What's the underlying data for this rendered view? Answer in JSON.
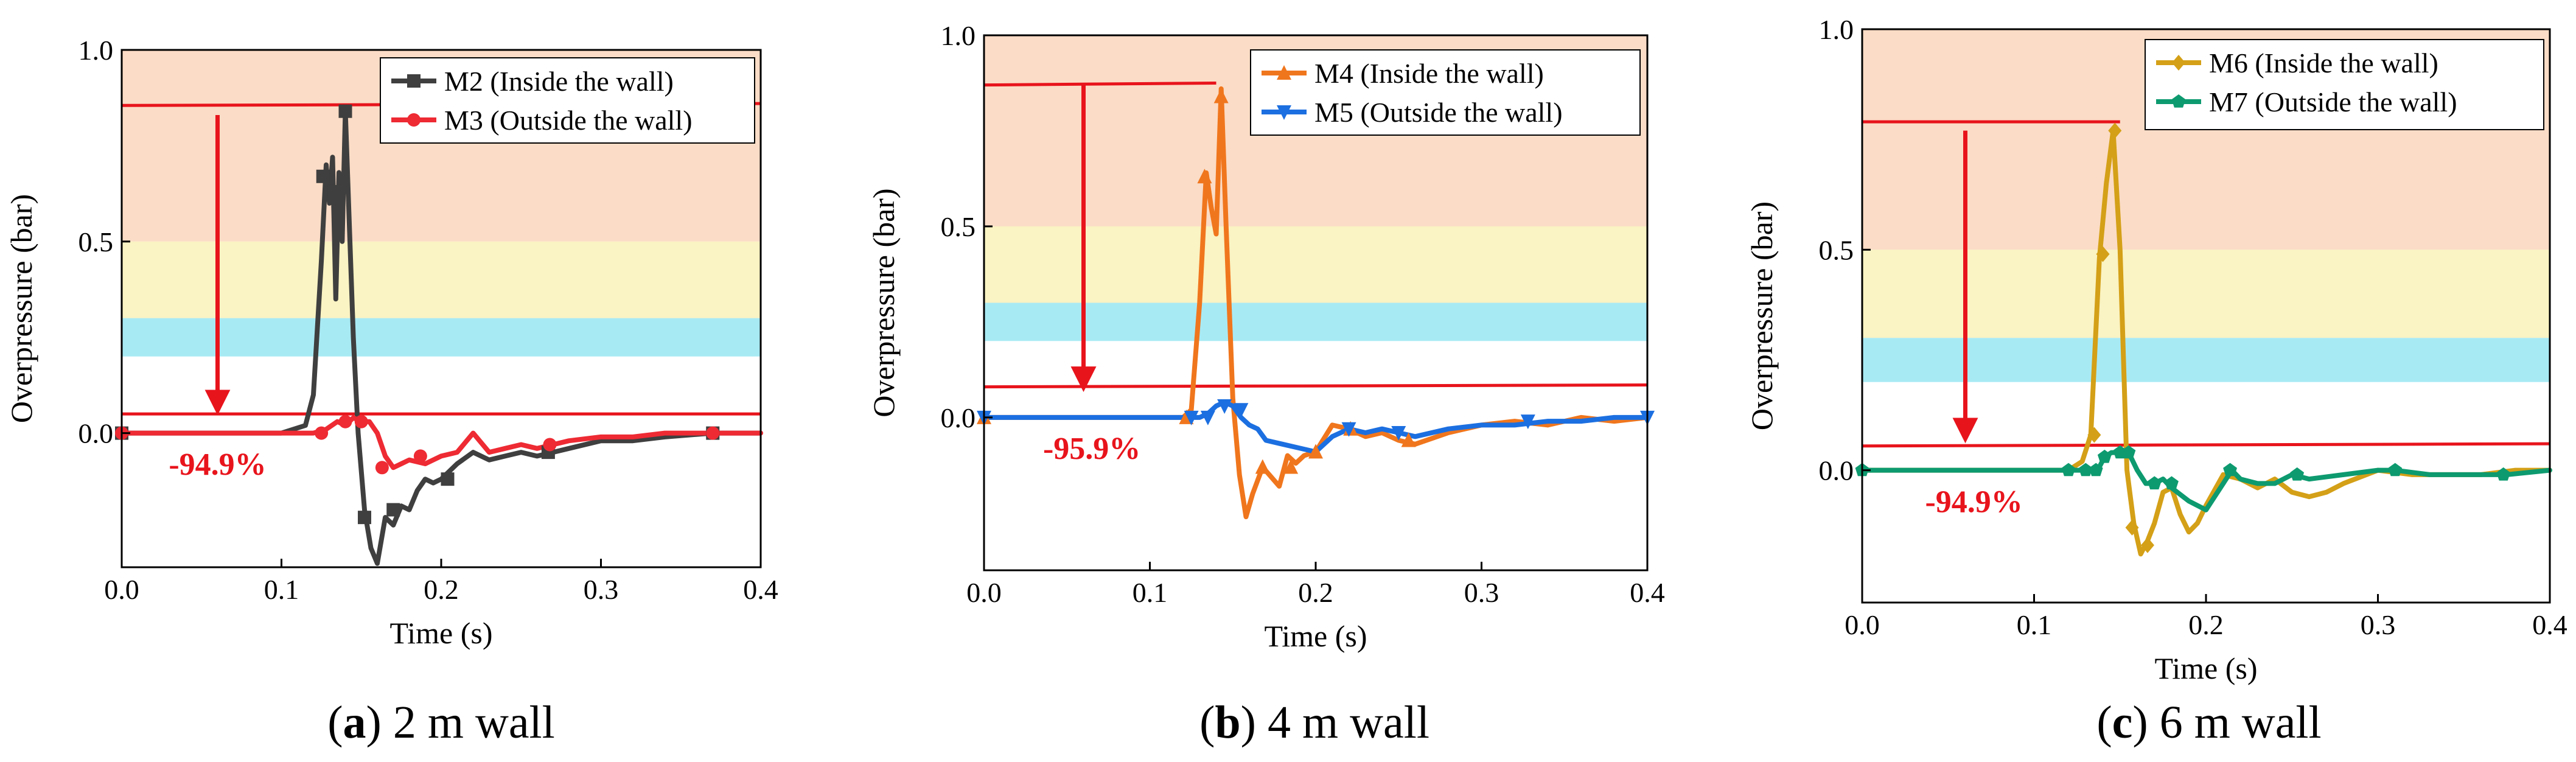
{
  "figure": {
    "colors": {
      "band_high": "#fbdcc6",
      "band_mid": "#faf3c3",
      "band_low": "#a8eaf4",
      "reference_line": "#e8141c",
      "arrow": "#e8141c",
      "annotation": "#e8141c"
    }
  },
  "chart_data": [
    {
      "type": "line",
      "panel_label": "a",
      "caption": "2 m wall",
      "xlabel": "Time (s)",
      "ylabel": "Overpressure (bar)",
      "xlim": [
        0.0,
        0.4
      ],
      "ylim": [
        -0.35,
        1.0
      ],
      "xticks": [
        "0.0",
        "0.1",
        "0.2",
        "0.3",
        "0.4"
      ],
      "yticks": [
        "0.0",
        "0.5",
        "1.0"
      ],
      "xtick_values": [
        0.0,
        0.1,
        0.2,
        0.3,
        0.4
      ],
      "ytick_values": [
        0.0,
        0.5,
        1.0
      ],
      "bands": [
        {
          "from": 0.5,
          "to": 1.0,
          "color": "#fbdcc6"
        },
        {
          "from": 0.3,
          "to": 0.5,
          "color": "#faf3c3"
        },
        {
          "from": 0.2,
          "to": 0.3,
          "color": "#a8eaf4"
        }
      ],
      "reference_lines": [
        {
          "from": [
            0.0,
            0.855
          ],
          "to": [
            0.4,
            0.86
          ]
        },
        {
          "from": [
            0.0,
            0.05
          ],
          "to": [
            0.4,
            0.05
          ]
        }
      ],
      "arrow": {
        "x": 0.06,
        "from": 0.83,
        "to": 0.08
      },
      "annotation": {
        "text": "-94.9%",
        "x": 0.06,
        "y": -0.08
      },
      "legend_position": "top-right",
      "series": [
        {
          "name": "M2 (Inside the wall)",
          "color": "#3f3f3f",
          "marker": "square",
          "x": [
            0.0,
            0.05,
            0.1,
            0.115,
            0.12,
            0.125,
            0.128,
            0.13,
            0.132,
            0.134,
            0.136,
            0.138,
            0.14,
            0.142,
            0.145,
            0.148,
            0.152,
            0.156,
            0.16,
            0.165,
            0.17,
            0.175,
            0.18,
            0.185,
            0.19,
            0.195,
            0.2,
            0.21,
            0.22,
            0.23,
            0.24,
            0.25,
            0.26,
            0.27,
            0.28,
            0.3,
            0.32,
            0.34,
            0.37,
            0.4
          ],
          "y": [
            0.0,
            0.0,
            0.0,
            0.02,
            0.1,
            0.45,
            0.7,
            0.6,
            0.72,
            0.35,
            0.68,
            0.5,
            0.84,
            0.6,
            0.25,
            0.0,
            -0.2,
            -0.3,
            -0.34,
            -0.22,
            -0.24,
            -0.19,
            -0.2,
            -0.15,
            -0.12,
            -0.13,
            -0.12,
            -0.08,
            -0.05,
            -0.07,
            -0.06,
            -0.05,
            -0.06,
            -0.05,
            -0.04,
            -0.02,
            -0.02,
            -0.01,
            0.0,
            0.0
          ],
          "marker_x": [
            0.0,
            0.126,
            0.133,
            0.14,
            0.152,
            0.17,
            0.204,
            0.267,
            0.37
          ],
          "marker_y": [
            0.0,
            0.67,
            0.63,
            0.84,
            -0.22,
            -0.2,
            -0.12,
            -0.05,
            0.0
          ]
        },
        {
          "name": "M3 (Outside the wall)",
          "color": "#ee2a33",
          "marker": "circle",
          "x": [
            0.0,
            0.05,
            0.1,
            0.12,
            0.128,
            0.135,
            0.14,
            0.145,
            0.15,
            0.155,
            0.16,
            0.165,
            0.17,
            0.175,
            0.18,
            0.19,
            0.2,
            0.21,
            0.22,
            0.23,
            0.24,
            0.25,
            0.26,
            0.27,
            0.28,
            0.3,
            0.32,
            0.34,
            0.37,
            0.4
          ],
          "y": [
            0.0,
            0.0,
            0.0,
            0.0,
            0.01,
            0.03,
            0.02,
            0.04,
            0.03,
            0.03,
            0.0,
            -0.06,
            -0.09,
            -0.08,
            -0.07,
            -0.08,
            -0.06,
            -0.05,
            0.0,
            -0.05,
            -0.04,
            -0.03,
            -0.04,
            -0.03,
            -0.02,
            -0.01,
            -0.01,
            0.0,
            0.0,
            0.0
          ],
          "marker_x": [
            0.0,
            0.125,
            0.14,
            0.15,
            0.163,
            0.187,
            0.268,
            0.37
          ],
          "marker_y": [
            0.0,
            0.0,
            0.03,
            0.03,
            -0.09,
            -0.06,
            -0.03,
            0.0
          ]
        }
      ]
    },
    {
      "type": "line",
      "panel_label": "b",
      "caption": "4 m wall",
      "xlabel": "Time (s)",
      "ylabel": "Overpressure (bar)",
      "xlim": [
        0.0,
        0.4
      ],
      "ylim": [
        -0.4,
        1.0
      ],
      "xticks": [
        "0.0",
        "0.1",
        "0.2",
        "0.3",
        "0.4"
      ],
      "yticks": [
        "0.0",
        "0.5",
        "1.0"
      ],
      "xtick_values": [
        0.0,
        0.1,
        0.2,
        0.3,
        0.4
      ],
      "ytick_values": [
        0.0,
        0.5,
        1.0
      ],
      "bands": [
        {
          "from": 0.5,
          "to": 1.0,
          "color": "#fbdcc6"
        },
        {
          "from": 0.3,
          "to": 0.5,
          "color": "#faf3c3"
        },
        {
          "from": 0.2,
          "to": 0.3,
          "color": "#a8eaf4"
        }
      ],
      "reference_lines": [
        {
          "from": [
            0.0,
            0.87
          ],
          "to": [
            0.14,
            0.875
          ]
        },
        {
          "from": [
            0.0,
            0.08
          ],
          "to": [
            0.4,
            0.085
          ]
        }
      ],
      "arrow": {
        "x": 0.06,
        "from": 0.87,
        "to": 0.1
      },
      "annotation": {
        "text": "-95.9%",
        "x": 0.065,
        "y": -0.08
      },
      "legend_position": "top-right",
      "series": [
        {
          "name": "M4 (Inside the wall)",
          "color": "#f0761d",
          "marker": "triangle-up",
          "x": [
            0.0,
            0.05,
            0.1,
            0.12,
            0.125,
            0.13,
            0.134,
            0.137,
            0.14,
            0.143,
            0.146,
            0.15,
            0.154,
            0.158,
            0.162,
            0.168,
            0.172,
            0.178,
            0.183,
            0.188,
            0.193,
            0.2,
            0.21,
            0.22,
            0.23,
            0.24,
            0.25,
            0.26,
            0.28,
            0.3,
            0.32,
            0.34,
            0.36,
            0.38,
            0.4
          ],
          "y": [
            0.0,
            0.0,
            0.0,
            0.0,
            0.02,
            0.3,
            0.64,
            0.55,
            0.48,
            0.86,
            0.5,
            0.05,
            -0.15,
            -0.26,
            -0.2,
            -0.13,
            -0.15,
            -0.18,
            -0.1,
            -0.12,
            -0.1,
            -0.09,
            -0.02,
            -0.03,
            -0.05,
            -0.04,
            -0.06,
            -0.07,
            -0.04,
            -0.02,
            -0.01,
            -0.02,
            0.0,
            -0.01,
            0.0
          ],
          "marker_x": [
            0.0,
            0.122,
            0.133,
            0.143,
            0.168,
            0.185,
            0.2,
            0.221,
            0.256
          ],
          "marker_y": [
            0.0,
            0.0,
            0.63,
            0.84,
            -0.13,
            -0.13,
            -0.09,
            -0.03,
            -0.06
          ]
        },
        {
          "name": "M5 (Outside the wall)",
          "color": "#1c6fe0",
          "marker": "triangle-down",
          "x": [
            0.0,
            0.05,
            0.1,
            0.12,
            0.13,
            0.135,
            0.14,
            0.145,
            0.15,
            0.155,
            0.16,
            0.165,
            0.17,
            0.18,
            0.19,
            0.2,
            0.21,
            0.22,
            0.23,
            0.24,
            0.25,
            0.26,
            0.28,
            0.3,
            0.32,
            0.34,
            0.36,
            0.38,
            0.4
          ],
          "y": [
            0.0,
            0.0,
            0.0,
            0.0,
            0.0,
            0.01,
            0.03,
            0.04,
            0.03,
            0.0,
            -0.02,
            -0.03,
            -0.06,
            -0.07,
            -0.08,
            -0.09,
            -0.05,
            -0.03,
            -0.04,
            -0.03,
            -0.04,
            -0.05,
            -0.03,
            -0.02,
            -0.02,
            -0.01,
            -0.01,
            0.0,
            0.0
          ],
          "marker_x": [
            0.0,
            0.125,
            0.135,
            0.145,
            0.155,
            0.22,
            0.25,
            0.328,
            0.4
          ],
          "marker_y": [
            0.0,
            0.0,
            0.0,
            0.03,
            0.02,
            -0.03,
            -0.04,
            -0.01,
            0.0
          ]
        }
      ]
    },
    {
      "type": "line",
      "panel_label": "c",
      "caption": "6 m wall",
      "xlabel": "Time (s)",
      "ylabel": "Overpressure (bar)",
      "xlim": [
        0.0,
        0.4
      ],
      "ylim": [
        -0.3,
        1.0
      ],
      "xticks": [
        "0.0",
        "0.1",
        "0.2",
        "0.3",
        "0.4"
      ],
      "yticks": [
        "0.0",
        "0.5",
        "1.0"
      ],
      "xtick_values": [
        0.0,
        0.1,
        0.2,
        0.3,
        0.4
      ],
      "ytick_values": [
        0.0,
        0.5,
        1.0
      ],
      "bands": [
        {
          "from": 0.5,
          "to": 1.0,
          "color": "#fbdcc6"
        },
        {
          "from": 0.3,
          "to": 0.5,
          "color": "#faf3c3"
        },
        {
          "from": 0.2,
          "to": 0.3,
          "color": "#a8eaf4"
        }
      ],
      "reference_lines": [
        {
          "from": [
            0.0,
            0.79
          ],
          "to": [
            0.15,
            0.79
          ]
        },
        {
          "from": [
            0.0,
            0.055
          ],
          "to": [
            0.4,
            0.06
          ]
        }
      ],
      "arrow": {
        "x": 0.06,
        "from": 0.77,
        "to": 0.09
      },
      "annotation": {
        "text": "-94.9%",
        "x": 0.065,
        "y": -0.07
      },
      "legend_position": "top-right",
      "series": [
        {
          "name": "M6 (Inside the wall)",
          "color": "#d4a017",
          "marker": "diamond",
          "x": [
            0.0,
            0.05,
            0.1,
            0.12,
            0.128,
            0.133,
            0.138,
            0.142,
            0.146,
            0.15,
            0.154,
            0.158,
            0.162,
            0.166,
            0.17,
            0.175,
            0.18,
            0.185,
            0.19,
            0.195,
            0.2,
            0.21,
            0.22,
            0.23,
            0.24,
            0.25,
            0.26,
            0.27,
            0.28,
            0.3,
            0.32,
            0.34,
            0.36,
            0.38,
            0.4
          ],
          "y": [
            0.0,
            0.0,
            0.0,
            0.0,
            0.02,
            0.08,
            0.48,
            0.65,
            0.77,
            0.5,
            0.0,
            -0.12,
            -0.19,
            -0.16,
            -0.12,
            -0.05,
            -0.04,
            -0.1,
            -0.14,
            -0.12,
            -0.08,
            -0.01,
            -0.02,
            -0.04,
            -0.02,
            -0.05,
            -0.06,
            -0.05,
            -0.03,
            0.0,
            -0.01,
            -0.01,
            -0.01,
            0.0,
            0.0
          ],
          "marker_x": [
            0.135,
            0.14,
            0.147,
            0.157,
            0.166
          ],
          "marker_y": [
            0.08,
            0.49,
            0.77,
            -0.13,
            -0.17
          ]
        },
        {
          "name": "M7 (Outside the wall)",
          "color": "#0d9a6f",
          "marker": "pentagon",
          "x": [
            0.0,
            0.05,
            0.1,
            0.12,
            0.13,
            0.137,
            0.141,
            0.145,
            0.15,
            0.155,
            0.16,
            0.165,
            0.17,
            0.175,
            0.18,
            0.19,
            0.2,
            0.21,
            0.215,
            0.22,
            0.23,
            0.24,
            0.25,
            0.26,
            0.28,
            0.3,
            0.31,
            0.33,
            0.35,
            0.375,
            0.4
          ],
          "y": [
            0.0,
            0.0,
            0.0,
            0.0,
            0.0,
            0.0,
            0.03,
            0.04,
            0.04,
            0.04,
            0.0,
            -0.03,
            -0.03,
            -0.02,
            -0.04,
            -0.07,
            -0.09,
            -0.03,
            0.0,
            -0.02,
            -0.03,
            -0.03,
            -0.01,
            -0.02,
            -0.01,
            0.0,
            0.0,
            -0.01,
            -0.01,
            -0.01,
            0.0
          ],
          "marker_x": [
            0.0,
            0.12,
            0.13,
            0.136,
            0.141,
            0.15,
            0.155,
            0.17,
            0.18,
            0.214,
            0.253,
            0.31,
            0.373
          ],
          "marker_y": [
            0.0,
            0.0,
            0.0,
            0.0,
            0.03,
            0.04,
            0.04,
            -0.03,
            -0.03,
            0.0,
            -0.01,
            0.0,
            -0.01
          ]
        }
      ]
    }
  ]
}
